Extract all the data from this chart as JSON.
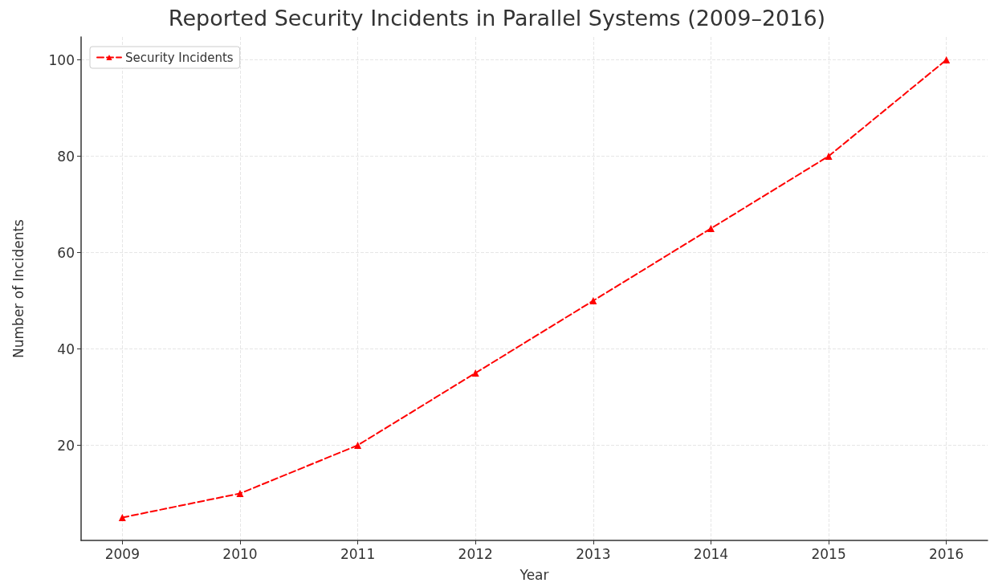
{
  "chart_data": {
    "type": "line",
    "title": "Reported Security Incidents in Parallel Systems (2009–2016)",
    "xlabel": "Year",
    "ylabel": "Number of Incidents",
    "x": [
      2009,
      2010,
      2011,
      2012,
      2013,
      2014,
      2015,
      2016
    ],
    "series": [
      {
        "name": "Security Incidents",
        "color": "#ff0000",
        "values": [
          5,
          10,
          20,
          35,
          50,
          65,
          80,
          100
        ]
      }
    ],
    "xlim": [
      2008.65,
      2016.35
    ],
    "xticks": [
      2009,
      2010,
      2011,
      2012,
      2013,
      2014,
      2015,
      2016
    ],
    "ylim": [
      0.25,
      104.75
    ],
    "yticks": [
      20,
      40,
      60,
      80,
      100
    ],
    "grid": true,
    "legend": "top left",
    "marker": "triangle",
    "line_style": "dashed"
  }
}
